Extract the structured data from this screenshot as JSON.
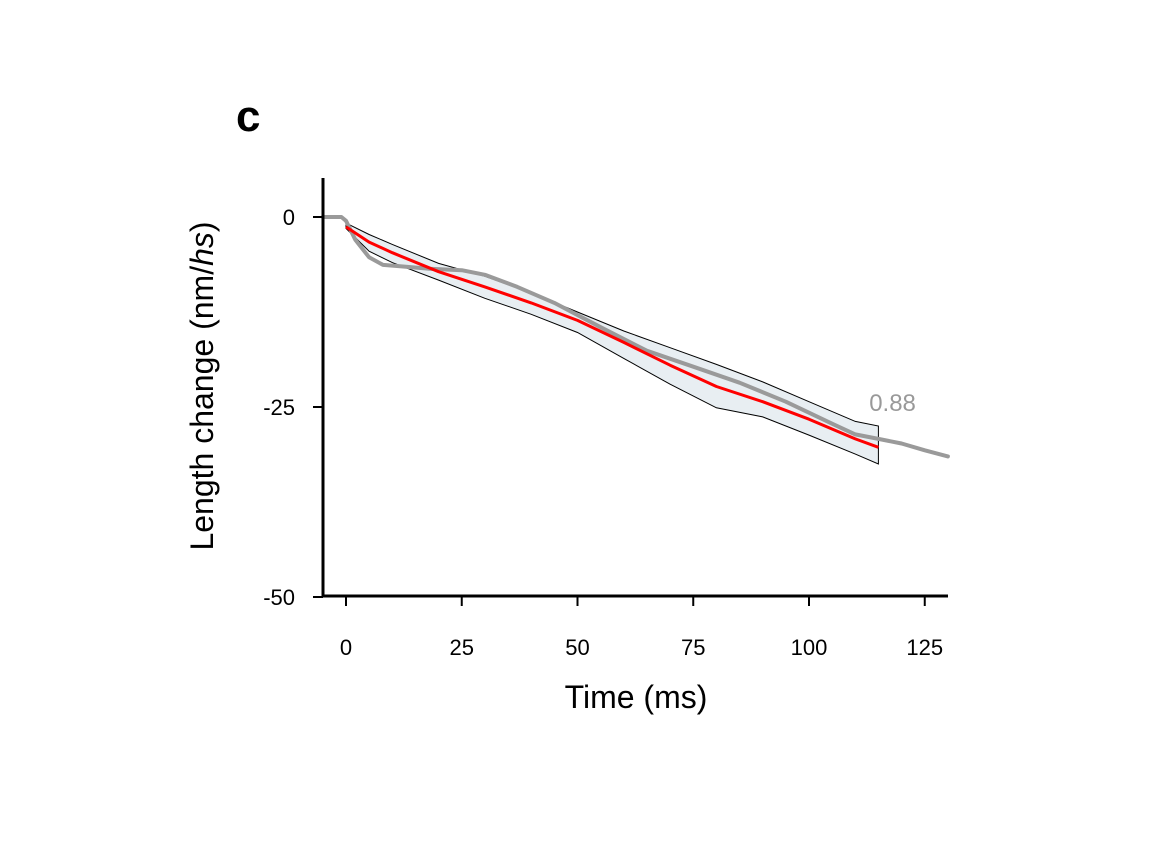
{
  "panel_label": "c",
  "chart_data": {
    "type": "line",
    "title": "",
    "xlabel": "Time (ms)",
    "ylabel_prefix": "Length change (nm/",
    "ylabel_italic": "hs",
    "ylabel_suffix": ")",
    "xlim": [
      -5,
      130
    ],
    "ylim": [
      -50,
      5
    ],
    "xticks": [
      0,
      25,
      50,
      75,
      100,
      125
    ],
    "yticks": [
      0,
      -25,
      -50
    ],
    "grid": false,
    "annotation": {
      "text": "0.88",
      "x": 113,
      "y": -24.5,
      "color": "#999999"
    },
    "colors": {
      "measured": "#9a9a9a",
      "fit": "#ff0000",
      "band_fill": "#e8eef2",
      "band_edge": "#000000"
    },
    "series": [
      {
        "name": "measured trace",
        "color": "#9a9a9a",
        "x": [
          -5,
          -1,
          0,
          2,
          5,
          8,
          12,
          18,
          25,
          30,
          37,
          45,
          55,
          65,
          75,
          85,
          95,
          105,
          110,
          115,
          120,
          125,
          130
        ],
        "y": [
          0,
          0,
          -0.5,
          -3,
          -5.3,
          -6.3,
          -6.5,
          -6.8,
          -7,
          -7.6,
          -9.2,
          -11.3,
          -14.5,
          -17.6,
          -19.7,
          -21.8,
          -24.3,
          -27.2,
          -28.6,
          -29.2,
          -29.8,
          -30.7,
          -31.5
        ]
      },
      {
        "name": "fit",
        "color": "#ff0000",
        "x": [
          0,
          5,
          10,
          20,
          30,
          40,
          50,
          60,
          70,
          80,
          90,
          100,
          110,
          115
        ],
        "y": [
          -1.3,
          -3.3,
          -4.7,
          -7.2,
          -9.2,
          -11.3,
          -13.6,
          -16.5,
          -19.5,
          -22.3,
          -24.3,
          -26.6,
          -29.2,
          -30.3
        ]
      },
      {
        "name": "band upper",
        "color": "#000000",
        "x": [
          0,
          5,
          10,
          20,
          30,
          40,
          50,
          60,
          70,
          80,
          90,
          100,
          110,
          115
        ],
        "y": [
          -0.8,
          -2.3,
          -3.6,
          -6.1,
          -7.8,
          -10,
          -12.5,
          -15,
          -17.2,
          -19.4,
          -21.7,
          -24.3,
          -26.9,
          -27.5
        ]
      },
      {
        "name": "band lower",
        "color": "#000000",
        "x": [
          0,
          5,
          10,
          20,
          30,
          40,
          50,
          60,
          70,
          80,
          90,
          100,
          110,
          115
        ],
        "y": [
          -1.5,
          -4.5,
          -6,
          -8.3,
          -10.7,
          -12.8,
          -15.2,
          -18.6,
          -22,
          -25.1,
          -26.3,
          -28.7,
          -31.2,
          -32.5
        ]
      }
    ]
  }
}
